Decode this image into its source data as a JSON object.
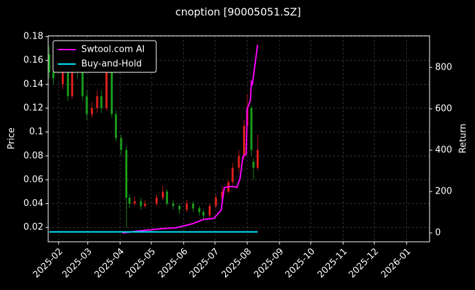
{
  "chart_data": {
    "type": "candlestick",
    "title": "cnoption [90005051.SZ]",
    "y_label": "Price",
    "y2_label": "Return",
    "xlim": [
      "2025-01-22",
      "2026-01-23"
    ],
    "xticks": [
      "2025-02",
      "2025-03",
      "2025-04",
      "2025-05",
      "2025-06",
      "2025-07",
      "2025-08",
      "2025-09",
      "2025-10",
      "2025-11",
      "2025-12",
      "2026-01"
    ],
    "ylim": [
      0.008,
      0.1806
    ],
    "yticks": [
      0.02,
      0.04,
      0.06,
      0.08,
      0.1,
      0.12,
      0.14,
      0.16,
      0.18
    ],
    "y2lim": [
      -43,
      953
    ],
    "y2ticks": [
      0,
      200,
      400,
      600,
      800
    ],
    "grid": true,
    "legend": "upper left",
    "up_color": "#e0201b",
    "down_color": "#1a9c1a",
    "x": [
      "2025-01-23",
      "2025-01-27",
      "2025-02-05",
      "2025-02-10",
      "2025-02-14",
      "2025-02-19",
      "2025-02-24",
      "2025-02-28",
      "2025-03-05",
      "2025-03-10",
      "2025-03-14",
      "2025-03-19",
      "2025-03-24",
      "2025-03-28",
      "2025-04-02",
      "2025-04-07",
      "2025-04-10",
      "2025-04-15",
      "2025-04-21",
      "2025-04-25",
      "2025-05-06",
      "2025-05-12",
      "2025-05-16",
      "2025-05-22",
      "2025-05-28",
      "2025-06-04",
      "2025-06-10",
      "2025-06-16",
      "2025-06-20",
      "2025-06-26",
      "2025-07-02",
      "2025-07-08",
      "2025-07-14",
      "2025-07-18",
      "2025-07-24",
      "2025-07-29",
      "2025-08-01",
      "2025-08-05",
      "2025-08-07",
      "2025-08-11"
    ],
    "open": [
      0.165,
      0.15,
      0.14,
      0.15,
      0.13,
      0.16,
      0.15,
      0.13,
      0.115,
      0.12,
      0.13,
      0.12,
      0.15,
      0.115,
      0.095,
      0.085,
      0.045,
      0.04,
      0.042,
      0.038,
      0.04,
      0.045,
      0.05,
      0.04,
      0.038,
      0.035,
      0.04,
      0.036,
      0.033,
      0.03,
      0.038,
      0.045,
      0.05,
      0.058,
      0.07,
      0.08,
      0.105,
      0.12,
      0.075,
      0.07
    ],
    "high": [
      0.172,
      0.155,
      0.156,
      0.155,
      0.165,
      0.165,
      0.155,
      0.135,
      0.125,
      0.135,
      0.135,
      0.155,
      0.152,
      0.118,
      0.098,
      0.088,
      0.048,
      0.046,
      0.045,
      0.043,
      0.048,
      0.055,
      0.052,
      0.043,
      0.04,
      0.043,
      0.042,
      0.038,
      0.035,
      0.04,
      0.048,
      0.055,
      0.06,
      0.074,
      0.085,
      0.11,
      0.132,
      0.122,
      0.078,
      0.098
    ],
    "low": [
      0.145,
      0.14,
      0.136,
      0.126,
      0.128,
      0.145,
      0.126,
      0.11,
      0.112,
      0.116,
      0.116,
      0.118,
      0.112,
      0.092,
      0.08,
      0.02,
      0.036,
      0.038,
      0.035,
      0.036,
      0.038,
      0.043,
      0.038,
      0.035,
      0.031,
      0.033,
      0.033,
      0.03,
      0.027,
      0.028,
      0.036,
      0.043,
      0.048,
      0.056,
      0.066,
      0.077,
      0.1,
      0.08,
      0.06,
      0.068
    ],
    "close": [
      0.15,
      0.145,
      0.15,
      0.13,
      0.16,
      0.15,
      0.13,
      0.115,
      0.12,
      0.13,
      0.12,
      0.15,
      0.115,
      0.095,
      0.085,
      0.045,
      0.04,
      0.042,
      0.038,
      0.04,
      0.045,
      0.05,
      0.04,
      0.038,
      0.035,
      0.04,
      0.036,
      0.033,
      0.03,
      0.038,
      0.045,
      0.05,
      0.058,
      0.07,
      0.08,
      0.105,
      0.12,
      0.085,
      0.07,
      0.085
    ],
    "series": [
      {
        "name": "Swtool.com AI",
        "color": "#ff00ff",
        "axis": "y2",
        "x": [
          "2025-04-03",
          "2025-04-20",
          "2025-05-10",
          "2025-05-25",
          "2025-06-10",
          "2025-06-20",
          "2025-06-30",
          "2025-07-07",
          "2025-07-10",
          "2025-07-18",
          "2025-07-22",
          "2025-07-25",
          "2025-07-28",
          "2025-07-31",
          "2025-08-01",
          "2025-08-04",
          "2025-08-05",
          "2025-08-06",
          "2025-08-07",
          "2025-08-11"
        ],
        "values": [
          0,
          10,
          20,
          25,
          45,
          65,
          70,
          110,
          220,
          225,
          220,
          260,
          370,
          380,
          600,
          640,
          730,
          720,
          760,
          910
        ]
      },
      {
        "name": "Buy-and-Hold",
        "color": "#00e5ff",
        "axis": "y2",
        "x": [
          "2025-01-23",
          "2025-04-07",
          "2025-08-11"
        ],
        "values": [
          5,
          5,
          5
        ]
      }
    ]
  }
}
